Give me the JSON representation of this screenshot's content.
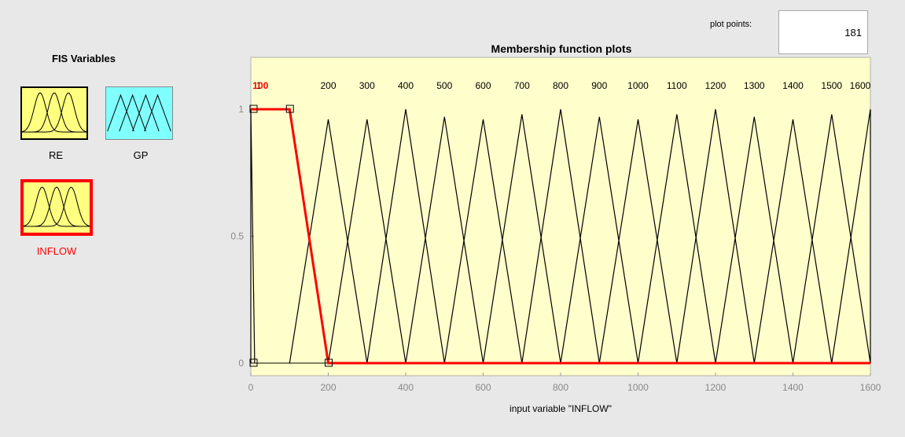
{
  "fis_panel": {
    "title": "FIS Variables",
    "variables": [
      {
        "label": "RE",
        "type": "input",
        "icon": "three-membership-curves-icon",
        "fill": "#ffff80",
        "selected": false
      },
      {
        "label": "GP",
        "type": "output",
        "icon": "triangular-membership-icon",
        "fill": "#80ffff",
        "selected": false
      },
      {
        "label": "INFLOW",
        "type": "input",
        "icon": "three-membership-curves-icon",
        "fill": "#ffff80",
        "selected": true
      }
    ]
  },
  "plot_points": {
    "label": "plot points:",
    "value": "181"
  },
  "colors": {
    "plot_bg": "#ffffcc",
    "selected": "#ff0000",
    "curve": "#000000",
    "window_bg": "#e8e8e8"
  },
  "chart_data": {
    "type": "line",
    "title": "Membership function plots",
    "xlabel": "input variable \"INFLOW\"",
    "ylabel": "",
    "xlim": [
      0,
      1600
    ],
    "ylim": [
      -0.2,
      1.2
    ],
    "x_ticks": [
      "0",
      "200",
      "400",
      "600",
      "800",
      "1000",
      "1200",
      "1400",
      "1600"
    ],
    "y_ticks": [
      "0",
      "0.5",
      "1"
    ],
    "selected_series": "100",
    "series": [
      {
        "name": "1",
        "shape": "trapezoid",
        "points": [
          [
            0,
            0
          ],
          [
            0,
            1
          ],
          [
            0,
            1
          ],
          [
            10,
            0
          ]
        ]
      },
      {
        "name": "100",
        "shape": "trapezoid",
        "points": [
          [
            0,
            1
          ],
          [
            100,
            1
          ],
          [
            200,
            0
          ],
          [
            1600,
            0
          ]
        ]
      },
      {
        "name": "200",
        "shape": "triangle",
        "points": [
          [
            100,
            0
          ],
          [
            200,
            0.96
          ],
          [
            300,
            0
          ]
        ]
      },
      {
        "name": "300",
        "shape": "triangle",
        "points": [
          [
            200,
            0
          ],
          [
            300,
            0.96
          ],
          [
            400,
            0
          ]
        ]
      },
      {
        "name": "400",
        "shape": "triangle",
        "points": [
          [
            300,
            0
          ],
          [
            400,
            1.0
          ],
          [
            500,
            0
          ]
        ]
      },
      {
        "name": "500",
        "shape": "triangle",
        "points": [
          [
            400,
            0
          ],
          [
            500,
            0.97
          ],
          [
            600,
            0
          ]
        ]
      },
      {
        "name": "600",
        "shape": "triangle",
        "points": [
          [
            500,
            0
          ],
          [
            600,
            0.96
          ],
          [
            700,
            0
          ]
        ]
      },
      {
        "name": "700",
        "shape": "triangle",
        "points": [
          [
            600,
            0
          ],
          [
            700,
            0.98
          ],
          [
            800,
            0
          ]
        ]
      },
      {
        "name": "800",
        "shape": "triangle",
        "points": [
          [
            700,
            0
          ],
          [
            800,
            1.0
          ],
          [
            900,
            0
          ]
        ]
      },
      {
        "name": "900",
        "shape": "triangle",
        "points": [
          [
            800,
            0
          ],
          [
            900,
            0.97
          ],
          [
            1000,
            0
          ]
        ]
      },
      {
        "name": "1000",
        "shape": "triangle",
        "points": [
          [
            900,
            0
          ],
          [
            1000,
            0.96
          ],
          [
            1100,
            0
          ]
        ]
      },
      {
        "name": "1100",
        "shape": "triangle",
        "points": [
          [
            1000,
            0
          ],
          [
            1100,
            0.98
          ],
          [
            1200,
            0
          ]
        ]
      },
      {
        "name": "1200",
        "shape": "triangle",
        "points": [
          [
            1100,
            0
          ],
          [
            1200,
            1.0
          ],
          [
            1300,
            0
          ]
        ]
      },
      {
        "name": "1300",
        "shape": "triangle",
        "points": [
          [
            1200,
            0
          ],
          [
            1300,
            0.97
          ],
          [
            1400,
            0
          ]
        ]
      },
      {
        "name": "1400",
        "shape": "triangle",
        "points": [
          [
            1300,
            0
          ],
          [
            1400,
            0.96
          ],
          [
            1500,
            0
          ]
        ]
      },
      {
        "name": "1500",
        "shape": "triangle",
        "points": [
          [
            1400,
            0
          ],
          [
            1500,
            0.98
          ],
          [
            1600,
            0
          ]
        ]
      },
      {
        "name": "1600",
        "shape": "triangle",
        "points": [
          [
            1500,
            0
          ],
          [
            1600,
            1.0
          ],
          [
            1700,
            0
          ]
        ]
      }
    ]
  }
}
